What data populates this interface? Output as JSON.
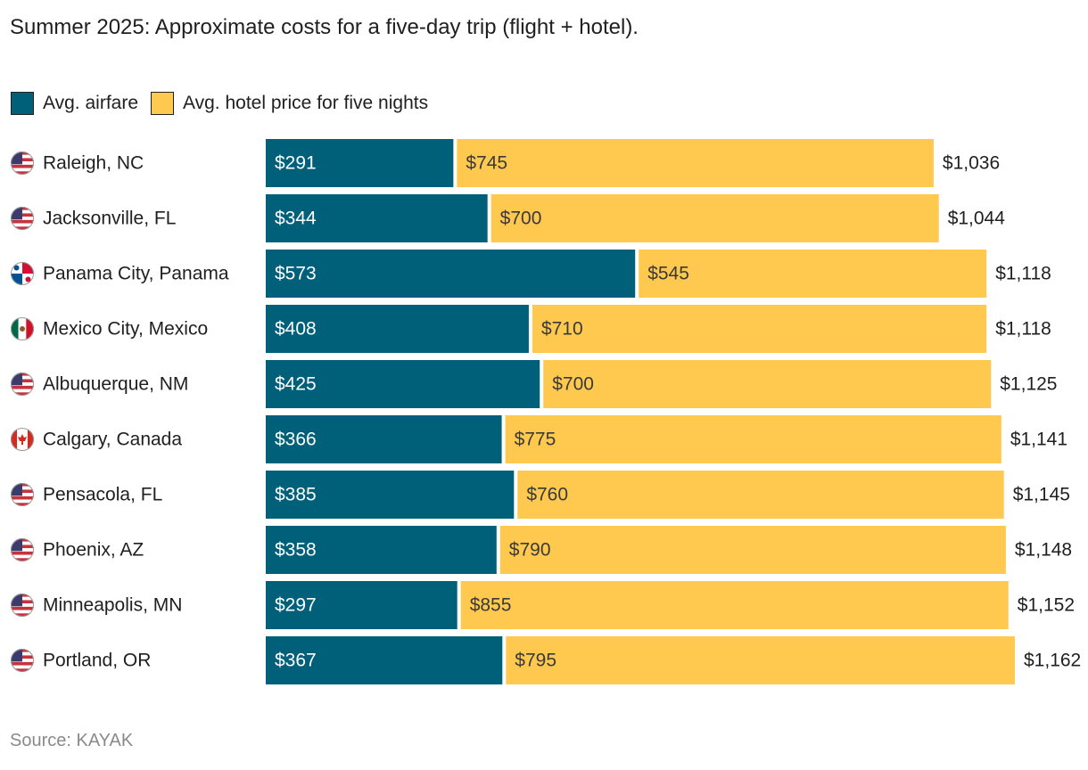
{
  "title": "Summer 2025: Approximate costs for a five-day trip (flight + hotel).",
  "legend": [
    {
      "label": "Avg. airfare",
      "color": "#00607a"
    },
    {
      "label": "Avg. hotel price for five nights",
      "color": "#ffc84f"
    }
  ],
  "source": "Source: KAYAK",
  "chart_data": {
    "type": "bar",
    "orientation": "horizontal",
    "stacked": true,
    "categories": [
      "Raleigh, NC",
      "Jacksonville, FL",
      "Panama City, Panama",
      "Mexico City, Mexico",
      "Albuquerque, NM",
      "Calgary, Canada",
      "Pensacola, FL",
      "Phoenix, AZ",
      "Minneapolis, MN",
      "Portland, OR"
    ],
    "flags": [
      "us-flag-icon",
      "us-flag-icon",
      "panama-flag-icon",
      "mexico-flag-icon",
      "us-flag-icon",
      "canada-flag-icon",
      "us-flag-icon",
      "us-flag-icon",
      "us-flag-icon",
      "us-flag-icon"
    ],
    "series": [
      {
        "name": "Avg. airfare",
        "color": "#00607a",
        "values": [
          291,
          344,
          573,
          408,
          425,
          366,
          385,
          358,
          297,
          367
        ],
        "labels": [
          "$291",
          "$344",
          "$573",
          "$408",
          "$425",
          "$366",
          "$385",
          "$358",
          "$297",
          "$367"
        ]
      },
      {
        "name": "Avg. hotel price for five nights",
        "color": "#ffc84f",
        "values": [
          745,
          700,
          545,
          710,
          700,
          775,
          760,
          790,
          855,
          795
        ],
        "labels": [
          "$745",
          "$700",
          "$545",
          "$710",
          "$700",
          "$775",
          "$760",
          "$790",
          "$855",
          "$795"
        ]
      }
    ],
    "totals": [
      1036,
      1044,
      1118,
      1118,
      1125,
      1141,
      1145,
      1148,
      1152,
      1162
    ],
    "total_labels": [
      "$1,036",
      "$1,044",
      "$1,118",
      "$1,118",
      "$1,125",
      "$1,141",
      "$1,145",
      "$1,148",
      "$1,152",
      "$1,162"
    ],
    "xlim": [
      0,
      1162
    ],
    "grid": false
  }
}
